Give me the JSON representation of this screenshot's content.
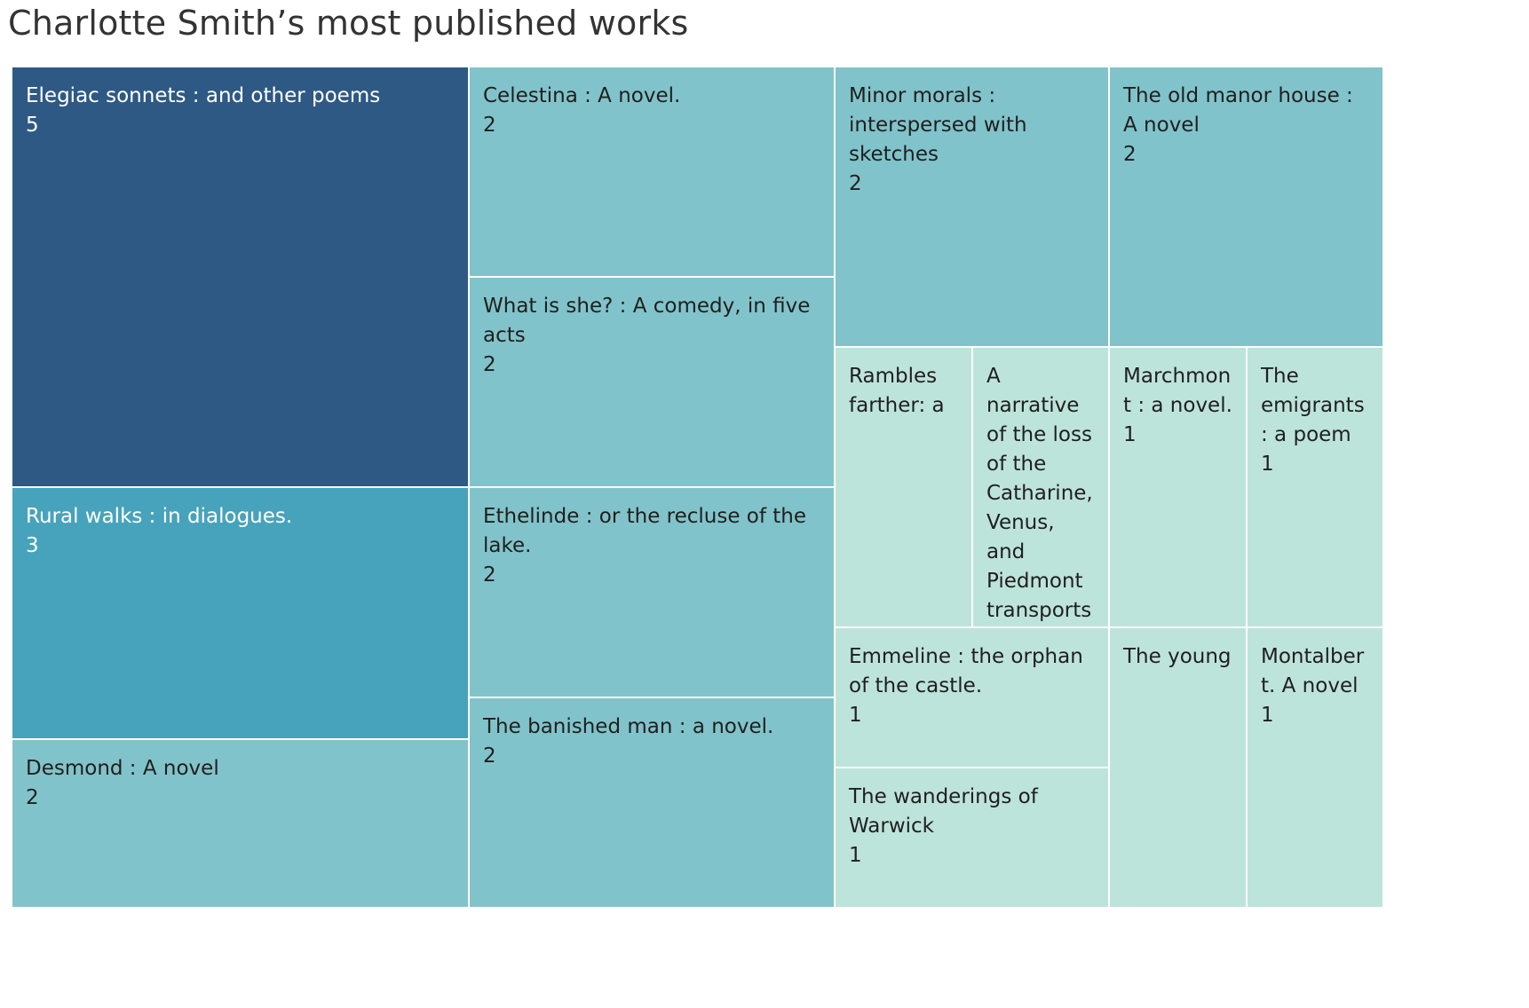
{
  "title": "Charlotte Smith’s most published works",
  "colors": {
    "level_5": "#2e5984",
    "level_3": "#47a3bb",
    "level_2": "#81c3ca",
    "level_1": "#bde4da",
    "dark_text": "#ffffff",
    "light_text": "#1f1f1f"
  },
  "chart_data": {
    "type": "treemap",
    "title": "Charlotte Smith’s most published works",
    "items": [
      {
        "label": "Elegiac sonnets : and other poems",
        "value": 5
      },
      {
        "label": "Rural walks : in dialogues.",
        "value": 3
      },
      {
        "label": "Desmond : A novel",
        "value": 2
      },
      {
        "label": "Celestina : A novel.",
        "value": 2
      },
      {
        "label": "What is she? : A comedy, in five acts",
        "value": 2
      },
      {
        "label": "Ethelinde : or the recluse of the lake.",
        "value": 2
      },
      {
        "label": "The banished man : a novel.",
        "value": 2
      },
      {
        "label": "Minor morals : interspersed with sketches",
        "value": 2
      },
      {
        "label": "The old manor house : A novel",
        "value": 2
      },
      {
        "label": "Rambles farther: a",
        "value": 1
      },
      {
        "label": "A narrative of the loss of the Catharine, Venus, and Piedmont transports",
        "value": 1
      },
      {
        "label": "Marchmont : a novel.",
        "value": 1
      },
      {
        "label": "The emigrants : a poem",
        "value": 1
      },
      {
        "label": "Emmeline : the orphan of the castle.",
        "value": 1
      },
      {
        "label": "The wanderings of Warwick",
        "value": 1
      },
      {
        "label": "The young",
        "value": 1
      },
      {
        "label": "Montalbert. A novel",
        "value": 1
      }
    ]
  }
}
